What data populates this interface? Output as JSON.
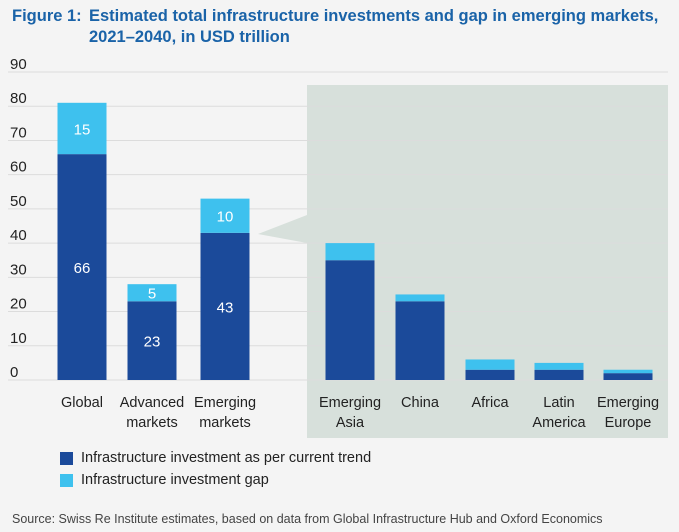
{
  "figure": {
    "number": "Figure 1:",
    "title": "Estimated total infrastructure investments and gap in emerging markets, 2021–2040, in USD trillion"
  },
  "colors": {
    "trend": "#1b4a9a",
    "gap": "#3ec1ee",
    "highlight_panel": "#d7e0db",
    "grid": "#dcdcdc",
    "title": "#1a63a8"
  },
  "chart_data": {
    "type": "bar",
    "stacked": true,
    "title": "Estimated total infrastructure investments and gap in emerging markets, 2021–2040, in USD trillion",
    "ylim": [
      0,
      90
    ],
    "yticks": [
      0,
      10,
      20,
      30,
      40,
      50,
      60,
      70,
      80,
      90
    ],
    "grid": true,
    "categories": [
      [
        "Global"
      ],
      [
        "Advanced",
        "markets"
      ],
      [
        "Emerging",
        "markets"
      ],
      [
        "Emerging",
        "Asia"
      ],
      [
        "China"
      ],
      [
        "Africa"
      ],
      [
        "Latin",
        "America"
      ],
      [
        "Emerging",
        "Europe"
      ]
    ],
    "series": [
      {
        "name": "Infrastructure investment as per current trend",
        "values": [
          66,
          23,
          43,
          35,
          23,
          3,
          3,
          2
        ]
      },
      {
        "name": "Infrastructure investment gap",
        "values": [
          15,
          5,
          10,
          5,
          2,
          3,
          2,
          1
        ]
      }
    ],
    "data_labels": {
      "trend": [
        "66",
        "23",
        "43",
        null,
        null,
        null,
        null,
        null
      ],
      "gap": [
        "15",
        "5",
        "10",
        null,
        null,
        null,
        null,
        null
      ]
    },
    "highlight": "Emerging markets breakdown (Emerging Asia through Emerging Europe)"
  },
  "legend": {
    "trend_label": "Infrastructure investment as per current trend",
    "gap_label": "Infrastructure investment gap"
  },
  "source": "Source: Swiss Re Institute estimates, based on data from Global Infrastructure Hub and Oxford Economics"
}
